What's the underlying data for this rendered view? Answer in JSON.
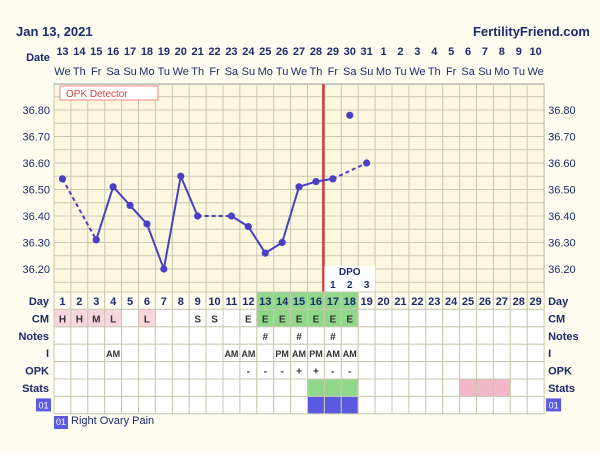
{
  "header": {
    "date": "Jan 13, 2021",
    "site": "FertilityFriend.com"
  },
  "labels": {
    "date_row": "Date",
    "day_row": "Day",
    "cm_row": "CM",
    "notes_row": "Notes",
    "i_row": "I",
    "opk_row": "OPK",
    "stats_row": "Stats",
    "stats_code": "01",
    "opk_detector": "OPK Detector",
    "dpo": "DPO"
  },
  "legend": {
    "code": "01",
    "text": "Right Ovary Pain"
  },
  "colors": {
    "line": "#4a3fc2",
    "coverline": "#d23b3b",
    "fertile": "#8fd88a",
    "ovulation": "#5a5ae0",
    "pink": "#f2b8c8",
    "grid": "#c8c8b0",
    "plot_bg": "#fbf8df",
    "text": "#1c2a6e"
  },
  "chart_data": {
    "type": "line",
    "dates": [
      "13",
      "14",
      "15",
      "16",
      "17",
      "18",
      "19",
      "20",
      "21",
      "22",
      "23",
      "24",
      "25",
      "26",
      "27",
      "28",
      "29",
      "30",
      "31",
      "1",
      "2",
      "3",
      "4",
      "5",
      "6",
      "7",
      "8",
      "9",
      "10"
    ],
    "weekdays": [
      "We",
      "Th",
      "Fr",
      "Sa",
      "Su",
      "Mo",
      "Tu",
      "We",
      "Th",
      "Fr",
      "Sa",
      "Su",
      "Mo",
      "Tu",
      "We",
      "Th",
      "Fr",
      "Sa",
      "Su",
      "Mo",
      "Tu",
      "We",
      "Th",
      "Fr",
      "Sa",
      "Su",
      "Mo",
      "Tu",
      "We"
    ],
    "cycle_days": [
      1,
      2,
      3,
      4,
      5,
      6,
      7,
      8,
      9,
      10,
      11,
      12,
      13,
      14,
      15,
      16,
      17,
      18,
      19,
      20,
      21,
      22,
      23,
      24,
      25,
      26,
      27,
      28,
      29
    ],
    "y_ticks": [
      "36.80",
      "36.70",
      "36.60",
      "36.50",
      "36.40",
      "36.30",
      "36.20"
    ],
    "ylim": [
      36.15,
      36.85
    ],
    "temps": [
      36.54,
      null,
      36.31,
      36.51,
      36.44,
      36.37,
      36.2,
      36.55,
      36.4,
      null,
      36.4,
      36.36,
      36.26,
      36.3,
      36.51,
      36.53,
      36.54,
      36.78,
      36.6
    ],
    "dashed_segments": [
      [
        1,
        3
      ],
      [
        9,
        11
      ],
      [
        17,
        19
      ]
    ],
    "outlier_days": [
      18
    ],
    "coverline_day": 16,
    "dpo": [
      "1",
      "2",
      "3"
    ],
    "cm": [
      "H",
      "H",
      "M",
      "L",
      "",
      "L",
      "",
      "",
      "S",
      "S",
      "",
      "E",
      "E",
      "E",
      "E",
      "E",
      "E",
      "E",
      "",
      "",
      "",
      "",
      "",
      "",
      "",
      "",
      "",
      "",
      ""
    ],
    "notes": [
      "",
      "",
      "",
      "",
      "",
      "",
      "",
      "",
      "",
      "",
      "",
      "",
      "#",
      "",
      "#",
      "",
      "#",
      "",
      "",
      "",
      "",
      "",
      "",
      "",
      "",
      "",
      "",
      "",
      ""
    ],
    "intercourse": [
      "",
      "",
      "",
      "AM",
      "",
      "",
      "",
      "",
      "",
      "",
      "AM",
      "AM",
      "",
      "PM",
      "AM",
      "PM",
      "AM",
      "AM",
      "",
      "",
      "",
      "",
      "",
      "",
      "",
      "",
      "",
      "",
      ""
    ],
    "opk": [
      "",
      "",
      "",
      "",
      "",
      "",
      "",
      "",
      "",
      "",
      "",
      "-",
      "-",
      "-",
      "+",
      "+",
      "-",
      "-",
      "",
      "",
      "",
      "",
      "",
      "",
      "",
      "",
      "",
      "",
      ""
    ],
    "fertile_days": [
      13,
      14,
      15,
      16,
      17,
      18
    ],
    "ovulation_stats_days": [
      16,
      17,
      18
    ],
    "pink_stats_days": [
      25,
      26,
      27
    ]
  }
}
